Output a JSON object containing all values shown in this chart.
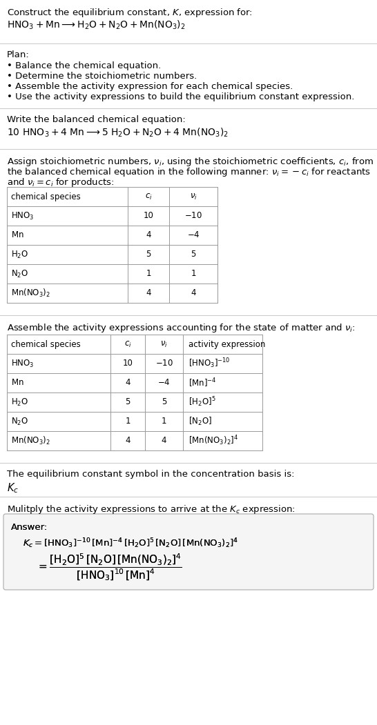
{
  "title_line1": "Construct the equilibrium constant, $K$, expression for:",
  "title_line2": "$\\mathrm{HNO_3 + Mn} \\longrightarrow \\mathrm{H_2O + N_2O + Mn(NO_3)_2}$",
  "plan_header": "Plan:",
  "plan_items": [
    "• Balance the chemical equation.",
    "• Determine the stoichiometric numbers.",
    "• Assemble the activity expression for each chemical species.",
    "• Use the activity expressions to build the equilibrium constant expression."
  ],
  "balanced_header": "Write the balanced chemical equation:",
  "balanced_eq": "$10\\ \\mathrm{HNO_3 + 4\\ Mn} \\longrightarrow 5\\ \\mathrm{H_2O + N_2O + 4\\ Mn(NO_3)_2}$",
  "stoich_intro_1": "Assign stoichiometric numbers, $\\nu_i$, using the stoichiometric coefficients, $c_i$, from",
  "stoich_intro_2": "the balanced chemical equation in the following manner: $\\nu_i = -c_i$ for reactants",
  "stoich_intro_3": "and $\\nu_i = c_i$ for products:",
  "table1_headers": [
    "chemical species",
    "$c_i$",
    "$\\nu_i$"
  ],
  "table1_rows": [
    [
      "$\\mathrm{HNO_3}$",
      "10",
      "$-10$"
    ],
    [
      "$\\mathrm{Mn}$",
      "4",
      "$-4$"
    ],
    [
      "$\\mathrm{H_2O}$",
      "5",
      "5"
    ],
    [
      "$\\mathrm{N_2O}$",
      "1",
      "1"
    ],
    [
      "$\\mathrm{Mn(NO_3)_2}$",
      "4",
      "4"
    ]
  ],
  "activity_intro": "Assemble the activity expressions accounting for the state of matter and $\\nu_i$:",
  "table2_headers": [
    "chemical species",
    "$c_i$",
    "$\\nu_i$",
    "activity expression"
  ],
  "table2_rows": [
    [
      "$\\mathrm{HNO_3}$",
      "10",
      "$-10$",
      "$[\\mathrm{HNO_3}]^{-10}$"
    ],
    [
      "$\\mathrm{Mn}$",
      "4",
      "$-4$",
      "$[\\mathrm{Mn}]^{-4}$"
    ],
    [
      "$\\mathrm{H_2O}$",
      "5",
      "5",
      "$[\\mathrm{H_2O}]^{5}$"
    ],
    [
      "$\\mathrm{N_2O}$",
      "1",
      "1",
      "$[\\mathrm{N_2O}]$"
    ],
    [
      "$\\mathrm{Mn(NO_3)_2}$",
      "4",
      "4",
      "$[\\mathrm{Mn(NO_3)_2}]^{4}$"
    ]
  ],
  "kc_text1": "The equilibrium constant symbol in the concentration basis is:",
  "kc_symbol": "$K_c$",
  "multiply_text": "Mulitply the activity expressions to arrive at the $K_c$ expression:",
  "answer_label": "Answer:",
  "answer_line1": "$K_c = [\\mathrm{HNO_3}]^{-10}\\,[\\mathrm{Mn}]^{-4}\\,[\\mathrm{H_2O}]^5\\,[\\mathrm{N_2O}]\\,[\\mathrm{Mn(NO_3)_2}]^4$",
  "answer_eq": "$= \\dfrac{[\\mathrm{H_2O}]^5\\,[\\mathrm{N_2O}]\\,[\\mathrm{Mn(NO_3)_2}]^4}{[\\mathrm{HNO_3}]^{10}\\,[\\mathrm{Mn}]^4}$",
  "bg_color": "#ffffff",
  "text_color": "#000000",
  "line_color": "#cccccc",
  "table_line_color": "#999999",
  "answer_box_bg": "#f5f5f5",
  "answer_box_edge": "#aaaaaa"
}
